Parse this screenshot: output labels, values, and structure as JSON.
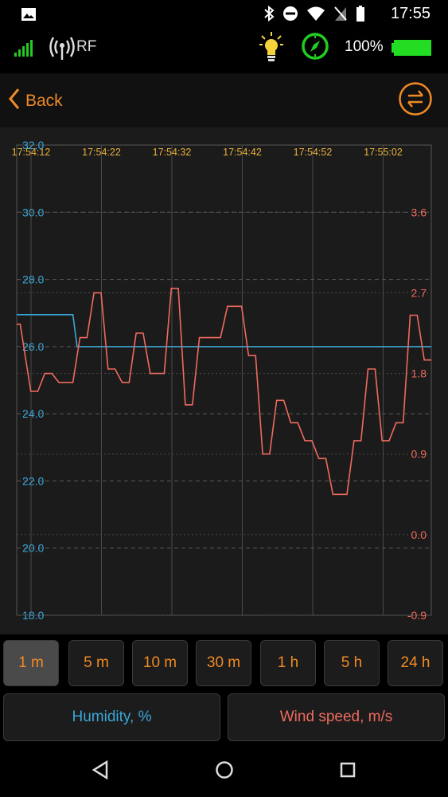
{
  "status_bar": {
    "time": "17:55",
    "icons": [
      "image-icon",
      "bluetooth-icon",
      "do-not-disturb-icon",
      "wifi-icon",
      "no-sim-icon",
      "battery-icon"
    ]
  },
  "device_bar": {
    "signal_icon": "signal-bars-icon",
    "rf_label": "RF",
    "lamp_icon": "lightbulb-icon",
    "compass_icon": "compass-icon",
    "battery_percent": "100%",
    "battery_color": "#22dd22"
  },
  "nav": {
    "back_label": "Back",
    "swap_icon": "swap-arrows-icon",
    "accent": "#f08a24"
  },
  "chart_data": {
    "type": "line",
    "x_ticks": [
      "17:54:12",
      "17:54:22",
      "17:54:32",
      "17:54:42",
      "17:54:52",
      "17:55:02"
    ],
    "y_left": {
      "ticks": [
        "32.0",
        "30.0",
        "28.0",
        "26.0",
        "24.0",
        "22.0",
        "20.0",
        "18.0"
      ],
      "range": [
        18,
        32
      ],
      "color": "#3aa6d8"
    },
    "y_right": {
      "ticks": [
        "3.6",
        "2.7",
        "1.8",
        "0.9",
        "0.0",
        "-0.9"
      ],
      "range": [
        -0.9,
        4.35
      ],
      "color": "#ef6a5e"
    },
    "series": [
      {
        "axis": "left",
        "color": "#3aa6d8",
        "points": [
          [
            0,
            26.95
          ],
          [
            8,
            26.95
          ],
          [
            8.6,
            26.0
          ],
          [
            59,
            26.0
          ]
        ]
      },
      {
        "axis": "right",
        "color": "#ef6a5e",
        "points": [
          [
            0,
            2.35
          ],
          [
            0.5,
            2.35
          ],
          [
            2,
            1.6
          ],
          [
            3,
            1.6
          ],
          [
            4,
            1.8
          ],
          [
            5,
            1.8
          ],
          [
            6,
            1.7
          ],
          [
            8,
            1.7
          ],
          [
            9,
            2.2
          ],
          [
            10,
            2.2
          ],
          [
            11,
            2.7
          ],
          [
            12,
            2.7
          ],
          [
            13,
            1.85
          ],
          [
            14,
            1.85
          ],
          [
            15,
            1.7
          ],
          [
            16,
            1.7
          ],
          [
            17,
            2.25
          ],
          [
            18,
            2.25
          ],
          [
            19,
            1.8
          ],
          [
            21,
            1.8
          ],
          [
            22,
            2.75
          ],
          [
            23,
            2.75
          ],
          [
            24,
            1.45
          ],
          [
            25,
            1.45
          ],
          [
            26,
            2.2
          ],
          [
            29,
            2.2
          ],
          [
            30,
            2.55
          ],
          [
            32,
            2.55
          ],
          [
            33,
            2.0
          ],
          [
            34,
            2.0
          ],
          [
            35,
            0.9
          ],
          [
            36,
            0.9
          ],
          [
            37,
            1.5
          ],
          [
            38,
            1.5
          ],
          [
            39,
            1.25
          ],
          [
            40,
            1.25
          ],
          [
            41,
            1.05
          ],
          [
            42,
            1.05
          ],
          [
            43,
            0.85
          ],
          [
            44,
            0.85
          ],
          [
            45,
            0.45
          ],
          [
            47,
            0.45
          ],
          [
            48,
            1.05
          ],
          [
            49,
            1.05
          ],
          [
            50,
            1.85
          ],
          [
            51,
            1.85
          ],
          [
            52,
            1.05
          ],
          [
            53,
            1.05
          ],
          [
            54,
            1.25
          ],
          [
            55,
            1.25
          ],
          [
            56,
            2.45
          ],
          [
            57,
            2.45
          ],
          [
            58,
            1.95
          ],
          [
            59,
            1.95
          ]
        ]
      }
    ]
  },
  "range_buttons": {
    "items": [
      "1 m",
      "5 m",
      "10 m",
      "30 m",
      "1 h",
      "5 h",
      "24 h"
    ],
    "active": "1 m"
  },
  "series_buttons": [
    {
      "label": "Humidity, %",
      "color": "#3aa6d8"
    },
    {
      "label": "Wind speed, m/s",
      "color": "#ef6a5e"
    }
  ],
  "system_nav": [
    "back-triangle-icon",
    "home-circle-icon",
    "recents-square-icon"
  ]
}
